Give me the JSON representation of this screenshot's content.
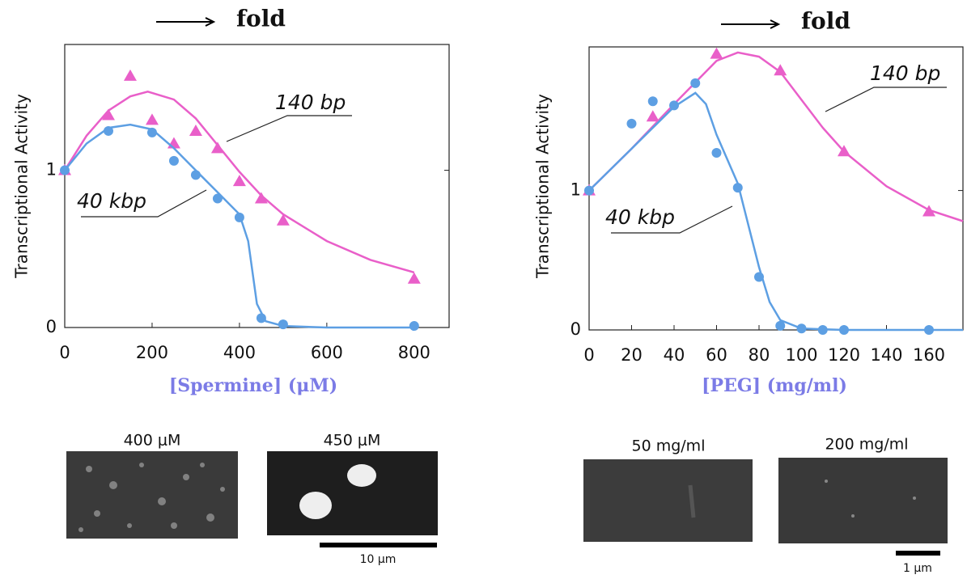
{
  "chart_data": [
    {
      "type": "scatter",
      "header": "fold",
      "ylabel": "Transcriptional Activity",
      "xlabel": "[Spermine] (μM)",
      "xlim": [
        0,
        880
      ],
      "ylim": [
        0,
        1.8
      ],
      "xticks": [
        0,
        200,
        400,
        600,
        800
      ],
      "yticks": [
        0,
        1
      ],
      "series": [
        {
          "name": "140 bp",
          "color": "#e95fc9",
          "marker": "triangle",
          "x": [
            0,
            100,
            150,
            200,
            250,
            300,
            350,
            400,
            450,
            500,
            800
          ],
          "values": [
            1,
            1.35,
            1.6,
            1.32,
            1.17,
            1.25,
            1.14,
            0.93,
            0.82,
            0.68,
            0.31
          ],
          "fit_x": [
            0,
            50,
            100,
            150,
            190,
            250,
            300,
            350,
            400,
            450,
            500,
            600,
            700,
            800
          ],
          "fit_values": [
            1,
            1.22,
            1.38,
            1.47,
            1.5,
            1.45,
            1.33,
            1.16,
            0.99,
            0.84,
            0.72,
            0.55,
            0.43,
            0.35
          ]
        },
        {
          "name": "40 kbp",
          "color": "#5d9fe3",
          "marker": "circle",
          "x": [
            0,
            100,
            200,
            250,
            300,
            350,
            400,
            450,
            500,
            800
          ],
          "values": [
            1,
            1.25,
            1.24,
            1.06,
            0.97,
            0.82,
            0.7,
            0.06,
            0.02,
            0.01
          ],
          "fit_x": [
            0,
            50,
            100,
            150,
            200,
            250,
            300,
            350,
            400,
            420,
            440,
            460,
            500,
            600,
            800
          ],
          "fit_values": [
            1,
            1.17,
            1.27,
            1.29,
            1.26,
            1.14,
            1,
            0.86,
            0.72,
            0.55,
            0.15,
            0.04,
            0.01,
            0,
            0
          ]
        }
      ]
    },
    {
      "type": "scatter",
      "header": "fold",
      "ylabel": "Transcriptional Activity",
      "xlabel": "[PEG] (mg/ml)",
      "xlim": [
        0,
        176
      ],
      "ylim": [
        0,
        2.03
      ],
      "xticks": [
        0,
        20,
        40,
        60,
        80,
        100,
        120,
        140,
        160
      ],
      "yticks": [
        0,
        1
      ],
      "series": [
        {
          "name": "140 bp",
          "color": "#e95fc9",
          "marker": "triangle",
          "x": [
            0,
            30,
            60,
            90,
            120,
            160
          ],
          "values": [
            1,
            1.53,
            1.98,
            1.86,
            1.28,
            0.85
          ],
          "fit_x": [
            0,
            20,
            40,
            60,
            70,
            80,
            90,
            100,
            110,
            120,
            140,
            160,
            176
          ],
          "fit_values": [
            1,
            1.3,
            1.62,
            1.93,
            1.99,
            1.96,
            1.85,
            1.65,
            1.45,
            1.28,
            1.03,
            0.86,
            0.78
          ]
        },
        {
          "name": "40 kbp",
          "color": "#5d9fe3",
          "marker": "circle",
          "x": [
            0,
            20,
            30,
            40,
            50,
            60,
            70,
            80,
            90,
            100,
            110,
            120,
            160
          ],
          "values": [
            1,
            1.48,
            1.64,
            1.61,
            1.77,
            1.27,
            1.02,
            0.38,
            0.03,
            0.01,
            0,
            0,
            0
          ],
          "fit_x": [
            0,
            20,
            40,
            50,
            55,
            60,
            70,
            80,
            85,
            90,
            100,
            120,
            176
          ],
          "fit_values": [
            1,
            1.3,
            1.6,
            1.7,
            1.62,
            1.4,
            1.05,
            0.45,
            0.2,
            0.07,
            0.01,
            0,
            0
          ]
        }
      ]
    }
  ],
  "micrographs": [
    {
      "images": [
        "400 μM",
        "450 μM"
      ],
      "scale_bar": "10 μm"
    },
    {
      "images": [
        "50 mg/ml",
        "200 mg/ml"
      ],
      "scale_bar": "1 μm"
    }
  ]
}
